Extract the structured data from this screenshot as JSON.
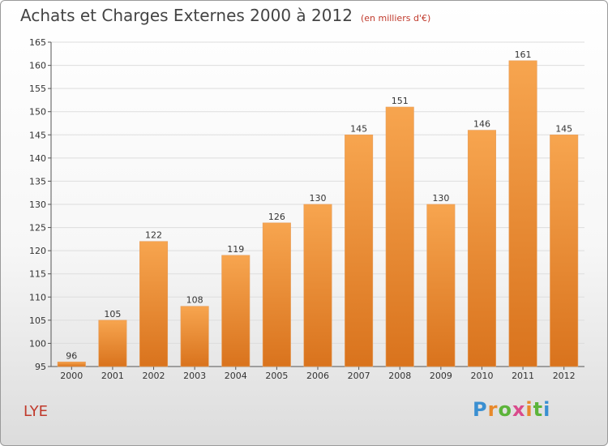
{
  "title": "Achats et Charges Externes 2000 à 2012",
  "subtitle": "(en milliers d'€)",
  "commune": "LYE",
  "logo_text": "Proxiti",
  "colors": {
    "bar_top": "#f7a54f",
    "bar_bottom": "#d9731d",
    "grid": "#dddddd",
    "title": "#444444",
    "accent": "#c0392b"
  },
  "chart_data": {
    "type": "bar",
    "categories": [
      "2000",
      "2001",
      "2002",
      "2003",
      "2004",
      "2005",
      "2006",
      "2007",
      "2008",
      "2009",
      "2010",
      "2011",
      "2012"
    ],
    "values": [
      96,
      105,
      122,
      108,
      119,
      126,
      130,
      145,
      151,
      130,
      146,
      161,
      145
    ],
    "ylim": [
      95,
      165
    ],
    "yticks": [
      95,
      100,
      105,
      110,
      115,
      120,
      125,
      130,
      135,
      140,
      145,
      150,
      155,
      160,
      165
    ],
    "grid": true,
    "data_labels": true
  }
}
